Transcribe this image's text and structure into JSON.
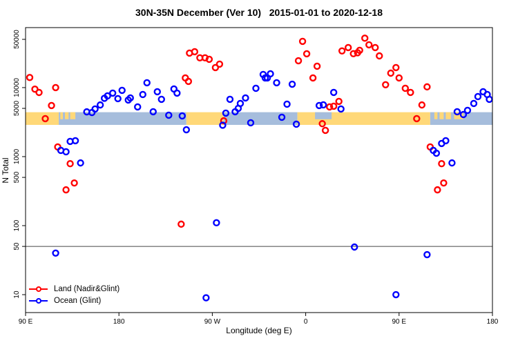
{
  "chart_data": {
    "type": "scatter",
    "title": "30N-35N December (Ver 10)   2015-01-01 to 2020-12-18",
    "xlabel": "Longitude (deg E)",
    "ylabel": "N Total",
    "grid": false,
    "legend_position": "bottom-left-inside",
    "x_axis": {
      "min": 90,
      "max": 540,
      "ticks": [
        {
          "value": 90,
          "label": "90 E"
        },
        {
          "value": 180,
          "label": "180"
        },
        {
          "value": 270,
          "label": "90 W"
        },
        {
          "value": 360,
          "label": "0"
        },
        {
          "value": 450,
          "label": "90 E"
        },
        {
          "value": 540,
          "label": "180"
        }
      ]
    },
    "y_axis": {
      "scale": "log",
      "min": 5.5,
      "max": 74000,
      "ticks": [
        10,
        50,
        100,
        500,
        1000,
        5000,
        10000,
        50000
      ]
    },
    "reference_line_y": 50,
    "reference_line_color": "#444444",
    "latitude_band": {
      "value_top": 4400,
      "value_bottom": 2880,
      "land_color": "#ffd878",
      "ocean_color": "#a6bddc",
      "segments": [
        {
          "from": 90,
          "to": 122,
          "surface": "land"
        },
        {
          "from": 122,
          "to": 245,
          "surface": "ocean"
        },
        {
          "from": 245,
          "to": 281,
          "surface": "land"
        },
        {
          "from": 281,
          "to": 352,
          "surface": "ocean"
        },
        {
          "from": 352,
          "to": 480,
          "surface": "land"
        },
        {
          "from": 480,
          "to": 540,
          "surface": "ocean"
        }
      ],
      "overlays": [
        {
          "from": 123.5,
          "to": 126,
          "surface": "land"
        },
        {
          "from": 128,
          "to": 131.5,
          "surface": "land"
        },
        {
          "from": 133,
          "to": 138,
          "surface": "land"
        },
        {
          "from": 369,
          "to": 385,
          "surface": "ocean"
        },
        {
          "from": 484,
          "to": 487,
          "surface": "land"
        },
        {
          "from": 489,
          "to": 493,
          "surface": "land"
        },
        {
          "from": 495,
          "to": 500,
          "surface": "land"
        },
        {
          "from": 503,
          "to": 512,
          "surface": "land"
        }
      ]
    },
    "series": [
      {
        "name": "Land (Nadir&Glint)",
        "color": "#ff0000",
        "points": [
          [
            94,
            14000
          ],
          [
            99,
            9500
          ],
          [
            103,
            8500
          ],
          [
            109,
            3550
          ],
          [
            115,
            5500
          ],
          [
            119,
            10000
          ],
          [
            121,
            1380
          ],
          [
            129,
            330
          ],
          [
            133,
            790
          ],
          [
            137,
            415
          ],
          [
            240,
            105
          ],
          [
            244,
            13800
          ],
          [
            247,
            12300
          ],
          [
            248,
            31600
          ],
          [
            253,
            33100
          ],
          [
            258,
            27000
          ],
          [
            263,
            27000
          ],
          [
            267,
            25700
          ],
          [
            273,
            19500
          ],
          [
            277,
            21900
          ],
          [
            281,
            3300
          ],
          [
            353,
            24500
          ],
          [
            357,
            46800
          ],
          [
            361,
            30900
          ],
          [
            367,
            13800
          ],
          [
            371,
            20400
          ],
          [
            376,
            3000
          ],
          [
            379,
            2400
          ],
          [
            383,
            5250
          ],
          [
            387,
            5370
          ],
          [
            392,
            6310
          ],
          [
            395,
            34000
          ],
          [
            401,
            38000
          ],
          [
            406,
            31000
          ],
          [
            410,
            32000
          ],
          [
            412,
            34700
          ],
          [
            417,
            52000
          ],
          [
            421,
            41700
          ],
          [
            427,
            38000
          ],
          [
            431,
            28800
          ],
          [
            437,
            11000
          ],
          [
            442,
            16200
          ],
          [
            447,
            19500
          ],
          [
            450,
            13800
          ],
          [
            456,
            9770
          ],
          [
            461,
            8510
          ],
          [
            467,
            3550
          ],
          [
            472,
            5600
          ],
          [
            477,
            10250
          ],
          [
            480,
            1380
          ],
          [
            487,
            330
          ],
          [
            491,
            790
          ],
          [
            493,
            415
          ]
        ]
      },
      {
        "name": "Ocean (Glint)",
        "color": "#0000ff",
        "points": [
          [
            119,
            40
          ],
          [
            124,
            1230
          ],
          [
            129,
            1175
          ],
          [
            133,
            1660
          ],
          [
            138,
            1700
          ],
          [
            143,
            810
          ],
          [
            149,
            4450
          ],
          [
            154,
            4350
          ],
          [
            157,
            4900
          ],
          [
            162,
            5600
          ],
          [
            166,
            7000
          ],
          [
            169,
            7580
          ],
          [
            174,
            8320
          ],
          [
            179,
            6920
          ],
          [
            183,
            9120
          ],
          [
            189,
            6610
          ],
          [
            191,
            7080
          ],
          [
            198,
            5250
          ],
          [
            203,
            7940
          ],
          [
            207,
            11750
          ],
          [
            213,
            4470
          ],
          [
            217,
            8710
          ],
          [
            221,
            6760
          ],
          [
            228,
            3980
          ],
          [
            233,
            9550
          ],
          [
            236,
            8320
          ],
          [
            241,
            3890
          ],
          [
            245,
            2450
          ],
          [
            264,
            9
          ],
          [
            274,
            110
          ],
          [
            280,
            2850
          ],
          [
            283,
            4270
          ],
          [
            287,
            6760
          ],
          [
            292,
            4470
          ],
          [
            295,
            5000
          ],
          [
            297,
            5890
          ],
          [
            302,
            7080
          ],
          [
            307,
            3090
          ],
          [
            312,
            9770
          ],
          [
            319,
            15500
          ],
          [
            321,
            13800
          ],
          [
            323,
            13800
          ],
          [
            326,
            15850
          ],
          [
            332,
            11750
          ],
          [
            337,
            3720
          ],
          [
            342,
            5750
          ],
          [
            347,
            11200
          ],
          [
            351,
            2950
          ],
          [
            373,
            5500
          ],
          [
            377,
            5620
          ],
          [
            387,
            8510
          ],
          [
            394,
            4900
          ],
          [
            407,
            49
          ],
          [
            447,
            10
          ],
          [
            477,
            38
          ],
          [
            483,
            1230
          ],
          [
            486,
            1120
          ],
          [
            491,
            1550
          ],
          [
            495,
            1700
          ],
          [
            501,
            810
          ],
          [
            506,
            4470
          ],
          [
            512,
            4070
          ],
          [
            516,
            4680
          ],
          [
            522,
            5890
          ],
          [
            526,
            7410
          ],
          [
            531,
            8710
          ],
          [
            535,
            7940
          ],
          [
            537,
            6760
          ]
        ]
      }
    ]
  }
}
